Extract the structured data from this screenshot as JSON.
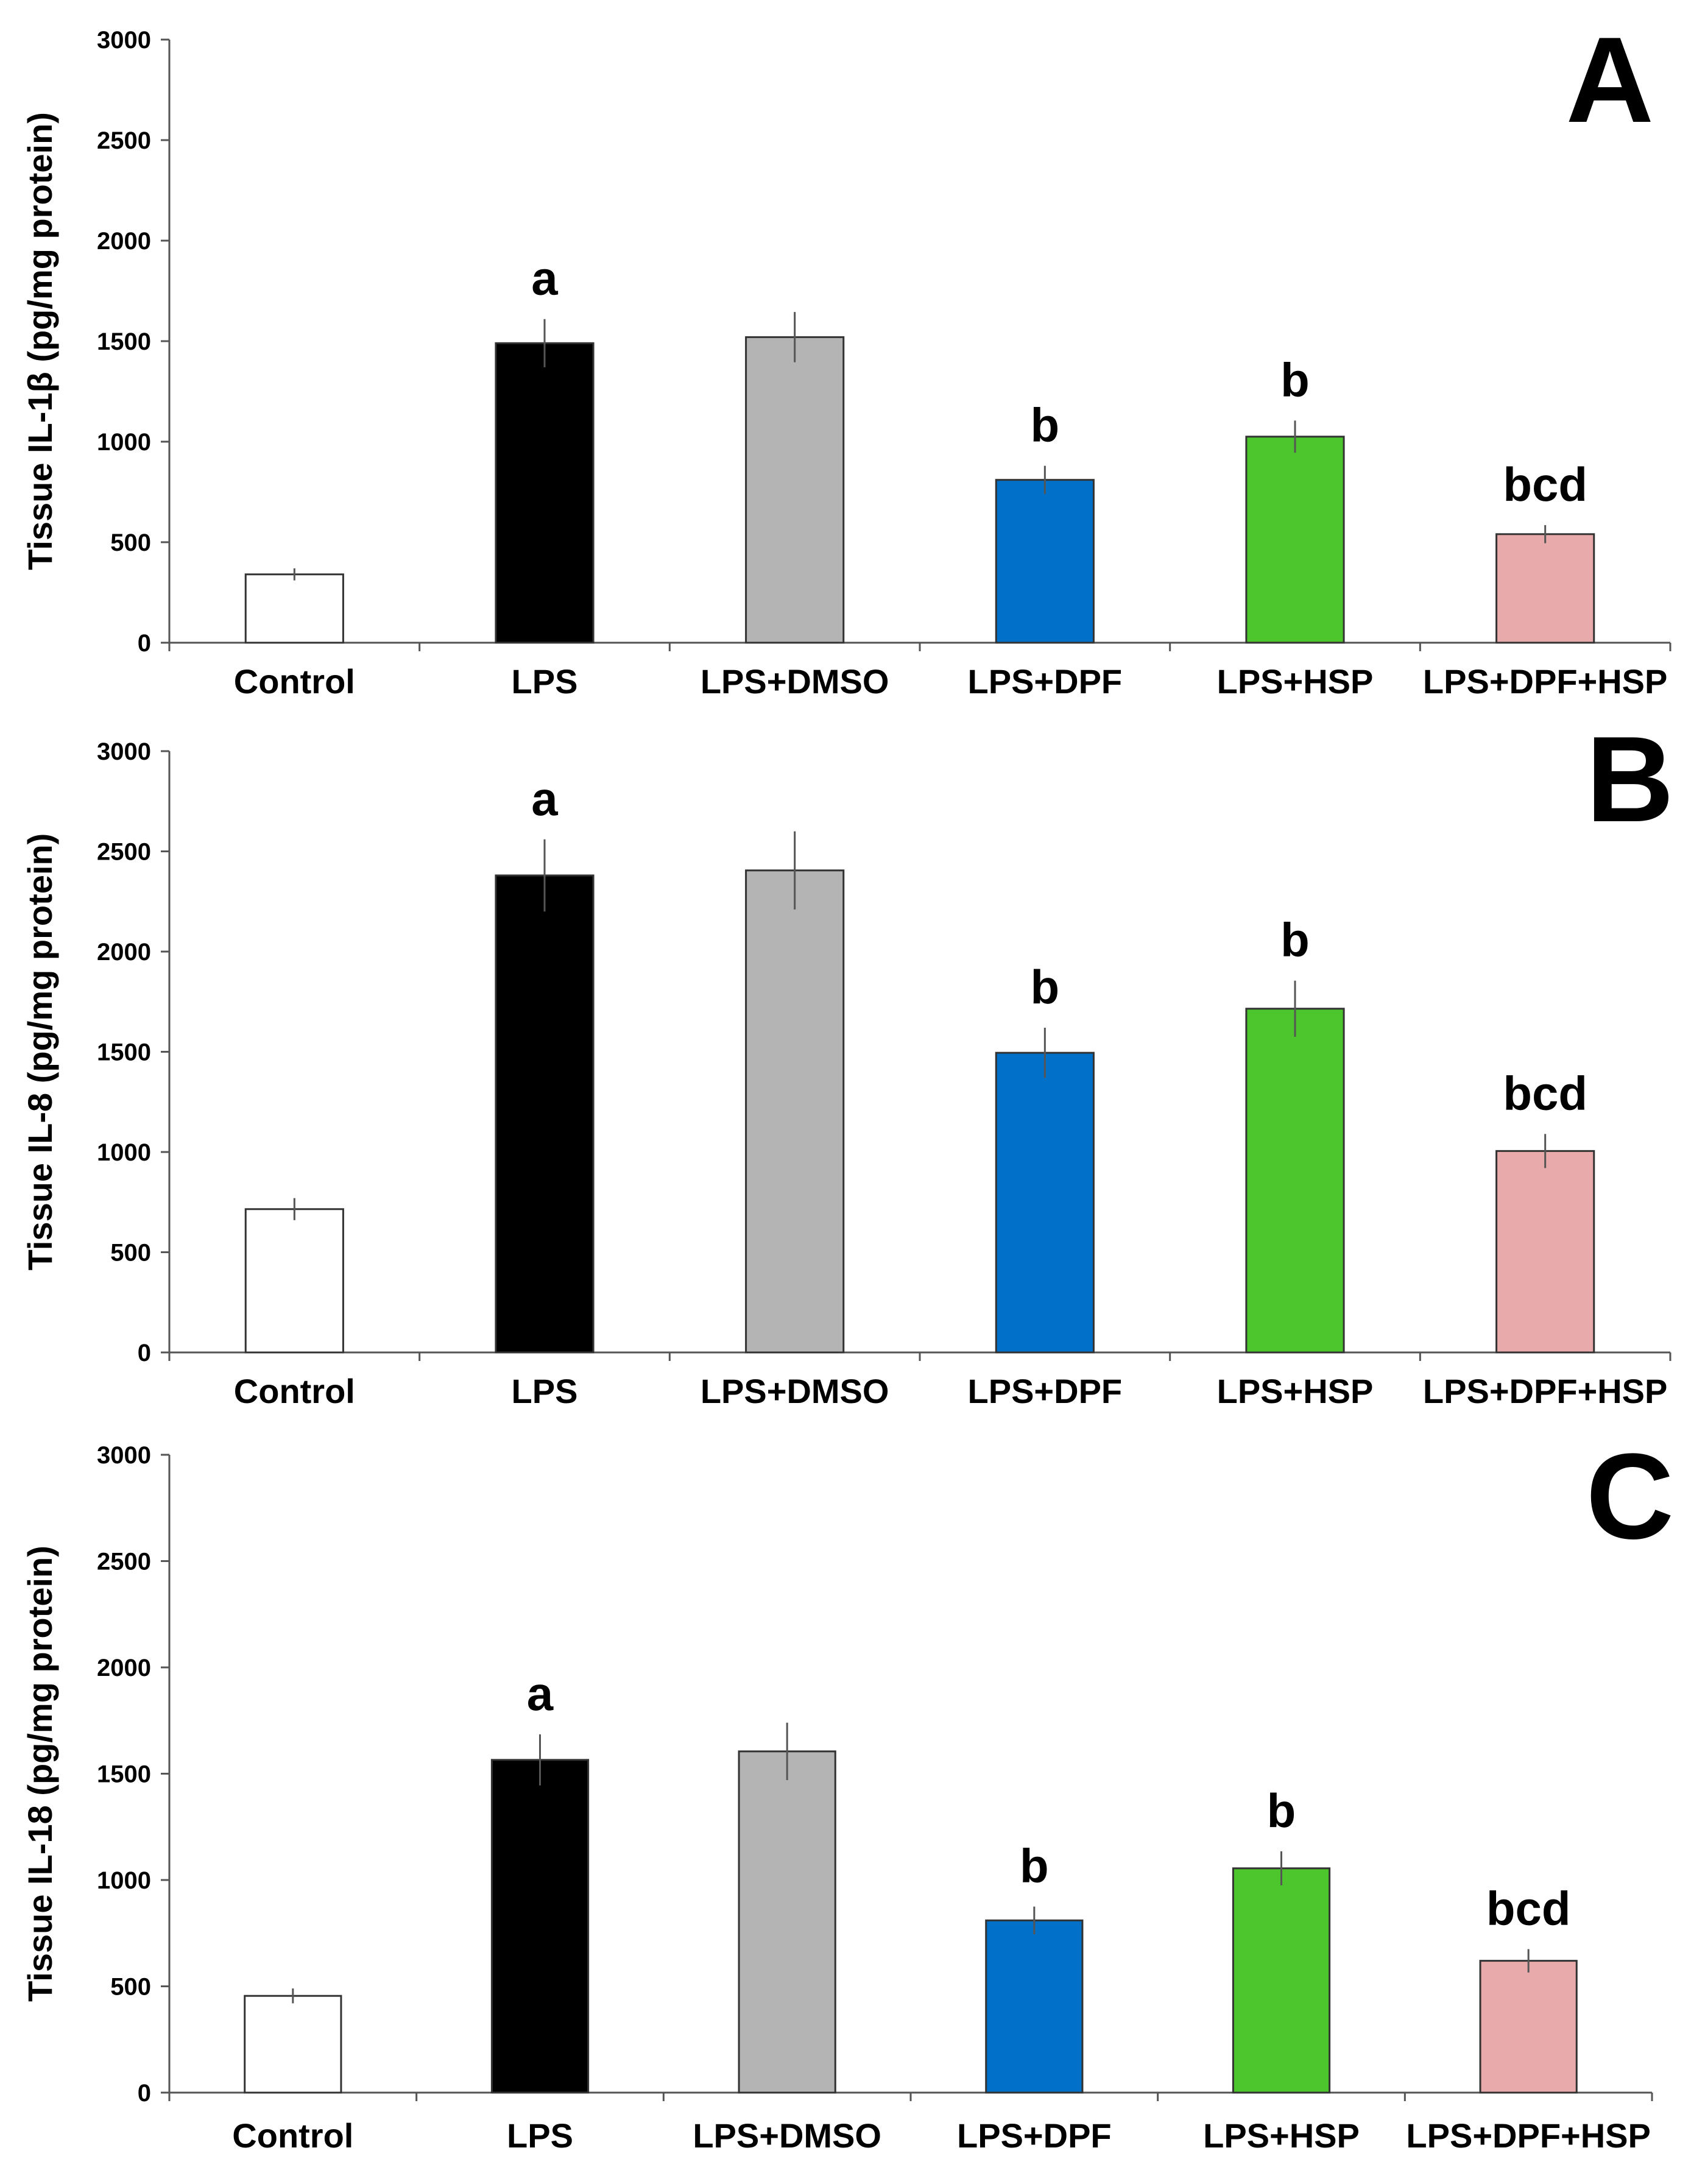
{
  "chart_data": [
    {
      "type": "bar",
      "panel_label": "A",
      "ylabel": "Tissue IL-1β (pg/mg protein)",
      "xlabel": "",
      "ylim": [
        0,
        3000
      ],
      "yticks": [
        0,
        500,
        1000,
        1500,
        2000,
        2500,
        3000
      ],
      "categories": [
        "Control",
        "LPS",
        "LPS+DMSO",
        "LPS+DPF",
        "LPS+HSP",
        "LPS+DPF+HSP"
      ],
      "values": [
        340,
        1490,
        1520,
        810,
        1025,
        540
      ],
      "errors": [
        30,
        120,
        125,
        70,
        80,
        45
      ],
      "colors": [
        "#ffffff",
        "#000000",
        "#b4b4b4",
        "#0070c8",
        "#4cc62c",
        "#e8aaaa"
      ],
      "annotations": [
        "",
        "a",
        "",
        "b",
        "b",
        "bcd"
      ]
    },
    {
      "type": "bar",
      "panel_label": "B",
      "ylabel": "Tissue IL-8 (pg/mg protein)",
      "xlabel": "",
      "ylim": [
        0,
        3000
      ],
      "yticks": [
        0,
        500,
        1000,
        1500,
        2000,
        2500,
        3000
      ],
      "categories": [
        "Control",
        "LPS",
        "LPS+DMSO",
        "LPS+DPF",
        "LPS+HSP",
        "LPS+DPF+HSP"
      ],
      "values": [
        715,
        2380,
        2405,
        1495,
        1715,
        1005
      ],
      "errors": [
        55,
        180,
        195,
        125,
        140,
        85
      ],
      "colors": [
        "#ffffff",
        "#000000",
        "#b4b4b4",
        "#0070c8",
        "#4cc62c",
        "#e8aaaa"
      ],
      "annotations": [
        "",
        "a",
        "",
        "b",
        "b",
        "bcd"
      ]
    },
    {
      "type": "bar",
      "panel_label": "C",
      "ylabel": "Tissue IL-18 (pg/mg protein)",
      "xlabel": "",
      "ylim": [
        0,
        3000
      ],
      "yticks": [
        0,
        500,
        1000,
        1500,
        2000,
        2500,
        3000
      ],
      "categories": [
        "Control",
        "LPS",
        "LPS+DMSO",
        "LPS+DPF",
        "LPS+HSP",
        "LPS+DPF+HSP"
      ],
      "values": [
        455,
        1565,
        1605,
        810,
        1055,
        620
      ],
      "errors": [
        35,
        120,
        135,
        65,
        80,
        55
      ],
      "colors": [
        "#ffffff",
        "#000000",
        "#b4b4b4",
        "#0070c8",
        "#4cc62c",
        "#e8aaaa"
      ],
      "annotations": [
        "",
        "a",
        "",
        "b",
        "b",
        "bcd"
      ]
    }
  ]
}
